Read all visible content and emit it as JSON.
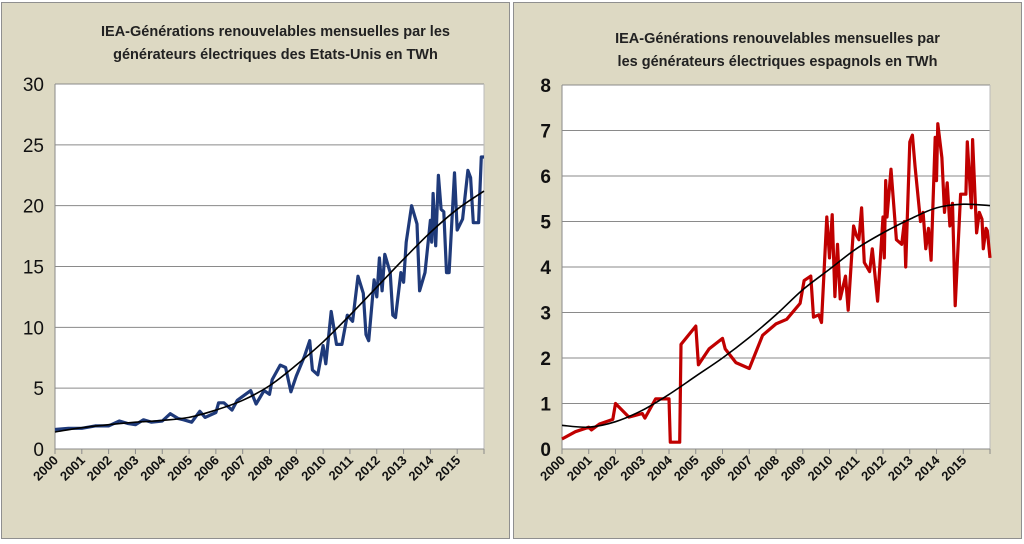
{
  "chart_data": [
    {
      "type": "line",
      "title_line1": "IEA-Générations renouvelables mensuelles par les",
      "title_line2": "générateurs  électriques des Etats-Unis  en TWh",
      "xlabel": "",
      "ylabel": "",
      "xlim": [
        2000,
        2016
      ],
      "ylim": [
        0,
        30
      ],
      "y_ticks": [
        "0",
        "5",
        "10",
        "15",
        "20",
        "25",
        "30"
      ],
      "x_ticks": [
        "2000",
        "2001",
        "2002",
        "2003",
        "2004",
        "2005",
        "2006",
        "2007",
        "2008",
        "2009",
        "2010",
        "2011",
        "2012",
        "2013",
        "2014",
        "2015"
      ],
      "grid": true,
      "series_color": "#1f3a7a",
      "trend_color": "#000000",
      "series": [
        [
          2000,
          1.6
        ],
        [
          2000.5,
          1.7
        ],
        [
          2001,
          1.7
        ],
        [
          2001.5,
          1.9
        ],
        [
          2002,
          1.9
        ],
        [
          2002.4,
          2.3
        ],
        [
          2002.7,
          2.1
        ],
        [
          2003,
          2.0
        ],
        [
          2003.3,
          2.4
        ],
        [
          2003.6,
          2.2
        ],
        [
          2004,
          2.3
        ],
        [
          2004.3,
          2.9
        ],
        [
          2004.6,
          2.5
        ],
        [
          2004.8,
          2.4
        ],
        [
          2005.1,
          2.2
        ],
        [
          2005.4,
          3.1
        ],
        [
          2005.6,
          2.6
        ],
        [
          2006,
          3.0
        ],
        [
          2006.1,
          3.8
        ],
        [
          2006.3,
          3.8
        ],
        [
          2006.6,
          3.2
        ],
        [
          2006.8,
          4.0
        ],
        [
          2007.3,
          4.8
        ],
        [
          2007.5,
          3.7
        ],
        [
          2007.8,
          4.8
        ],
        [
          2008,
          4.5
        ],
        [
          2008.1,
          5.7
        ],
        [
          2008.4,
          6.9
        ],
        [
          2008.6,
          6.7
        ],
        [
          2008.8,
          4.7
        ],
        [
          2009,
          6.0
        ],
        [
          2009.3,
          7.6
        ],
        [
          2009.5,
          8.9
        ],
        [
          2009.6,
          6.5
        ],
        [
          2009.8,
          6.1
        ],
        [
          2010,
          8.5
        ],
        [
          2010.1,
          7.0
        ],
        [
          2010.3,
          11.3
        ],
        [
          2010.5,
          8.6
        ],
        [
          2010.7,
          8.6
        ],
        [
          2010.9,
          11.0
        ],
        [
          2011.1,
          10.5
        ],
        [
          2011.3,
          14.2
        ],
        [
          2011.5,
          12.8
        ],
        [
          2011.6,
          9.4
        ],
        [
          2011.7,
          8.9
        ],
        [
          2011.9,
          13.9
        ],
        [
          2012,
          12.5
        ],
        [
          2012.1,
          15.7
        ],
        [
          2012.2,
          13.0
        ],
        [
          2012.3,
          16.0
        ],
        [
          2012.5,
          14.5
        ],
        [
          2012.6,
          11.0
        ],
        [
          2012.7,
          10.8
        ],
        [
          2012.9,
          14.5
        ],
        [
          2013,
          13.7
        ],
        [
          2013.1,
          17.0
        ],
        [
          2013.3,
          20.0
        ],
        [
          2013.5,
          18.5
        ],
        [
          2013.6,
          13.0
        ],
        [
          2013.8,
          14.5
        ],
        [
          2014,
          18.8
        ],
        [
          2014.05,
          17.0
        ],
        [
          2014.1,
          21.0
        ],
        [
          2014.2,
          16.7
        ],
        [
          2014.3,
          22.5
        ],
        [
          2014.4,
          19.7
        ],
        [
          2014.5,
          19.5
        ],
        [
          2014.6,
          14.5
        ],
        [
          2014.7,
          14.5
        ],
        [
          2014.9,
          22.7
        ],
        [
          2015,
          18.0
        ],
        [
          2015.2,
          18.9
        ],
        [
          2015.4,
          22.9
        ],
        [
          2015.5,
          22.3
        ],
        [
          2015.6,
          18.6
        ],
        [
          2015.8,
          18.6
        ],
        [
          2015.9,
          24.0
        ],
        [
          2016,
          24.0
        ]
      ],
      "trend": [
        [
          2000,
          1.4
        ],
        [
          2001,
          1.75
        ],
        [
          2002,
          2.0
        ],
        [
          2003,
          2.2
        ],
        [
          2004,
          2.35
        ],
        [
          2005,
          2.6
        ],
        [
          2006,
          3.2
        ],
        [
          2007,
          4.0
        ],
        [
          2008,
          5.2
        ],
        [
          2009,
          6.9
        ],
        [
          2010,
          8.8
        ],
        [
          2011,
          11.0
        ],
        [
          2012,
          13.3
        ],
        [
          2013,
          15.6
        ],
        [
          2014,
          17.8
        ],
        [
          2015,
          19.7
        ],
        [
          2016,
          21.2
        ]
      ]
    },
    {
      "type": "line",
      "title_line1": "IEA-Générations renouvelables mensuelles par",
      "title_line2": "les générateurs  électriques espagnols en TWh",
      "xlabel": "",
      "ylabel": "",
      "xlim": [
        2000,
        2016
      ],
      "ylim": [
        0,
        8
      ],
      "y_ticks": [
        "0",
        "1",
        "2",
        "3",
        "4",
        "5",
        "6",
        "7",
        "8"
      ],
      "x_ticks": [
        "2000",
        "2001",
        "2002",
        "2003",
        "2004",
        "2005",
        "2006",
        "2007",
        "2008",
        "2009",
        "2010",
        "2011",
        "2012",
        "2013",
        "2014",
        "2015"
      ],
      "grid": true,
      "series_color": "#c00000",
      "trend_color": "#000000",
      "series": [
        [
          2000,
          0.22
        ],
        [
          2000.5,
          0.38
        ],
        [
          2001,
          0.48
        ],
        [
          2001.1,
          0.42
        ],
        [
          2001.4,
          0.55
        ],
        [
          2001.9,
          0.65
        ],
        [
          2002,
          1.0
        ],
        [
          2002.5,
          0.7
        ],
        [
          2003,
          0.78
        ],
        [
          2003.1,
          0.68
        ],
        [
          2003.5,
          1.1
        ],
        [
          2004,
          1.1
        ],
        [
          2004.05,
          0.15
        ],
        [
          2004.4,
          0.15
        ],
        [
          2004.45,
          2.3
        ],
        [
          2005,
          2.7
        ],
        [
          2005.1,
          1.85
        ],
        [
          2005.5,
          2.2
        ],
        [
          2006,
          2.43
        ],
        [
          2006.1,
          2.2
        ],
        [
          2006.5,
          1.9
        ],
        [
          2007,
          1.77
        ],
        [
          2007.5,
          2.5
        ],
        [
          2008,
          2.75
        ],
        [
          2008.4,
          2.85
        ],
        [
          2008.9,
          3.2
        ],
        [
          2009.05,
          3.7
        ],
        [
          2009.3,
          3.8
        ],
        [
          2009.4,
          2.9
        ],
        [
          2009.6,
          2.95
        ],
        [
          2009.7,
          2.78
        ],
        [
          2009.9,
          5.1
        ],
        [
          2010,
          4.2
        ],
        [
          2010.1,
          5.15
        ],
        [
          2010.2,
          3.35
        ],
        [
          2010.3,
          4.5
        ],
        [
          2010.4,
          3.3
        ],
        [
          2010.6,
          3.8
        ],
        [
          2010.7,
          3.05
        ],
        [
          2010.9,
          4.9
        ],
        [
          2011,
          4.7
        ],
        [
          2011.1,
          4.6
        ],
        [
          2011.2,
          5.3
        ],
        [
          2011.3,
          4.1
        ],
        [
          2011.5,
          3.9
        ],
        [
          2011.6,
          4.4
        ],
        [
          2011.8,
          3.25
        ],
        [
          2012,
          5.1
        ],
        [
          2012.05,
          4.2
        ],
        [
          2012.1,
          5.9
        ],
        [
          2012.15,
          5.1
        ],
        [
          2012.3,
          6.15
        ],
        [
          2012.5,
          4.6
        ],
        [
          2012.7,
          4.5
        ],
        [
          2012.8,
          5.0
        ],
        [
          2012.85,
          4.0
        ],
        [
          2013,
          6.75
        ],
        [
          2013.1,
          6.9
        ],
        [
          2013.2,
          6.2
        ],
        [
          2013.4,
          5.0
        ],
        [
          2013.5,
          5.2
        ],
        [
          2013.6,
          4.4
        ],
        [
          2013.7,
          4.85
        ],
        [
          2013.8,
          4.15
        ],
        [
          2013.95,
          6.85
        ],
        [
          2014,
          5.9
        ],
        [
          2014.05,
          7.15
        ],
        [
          2014.2,
          6.4
        ],
        [
          2014.3,
          5.2
        ],
        [
          2014.4,
          5.85
        ],
        [
          2014.5,
          4.9
        ],
        [
          2014.6,
          5.4
        ],
        [
          2014.7,
          3.15
        ],
        [
          2014.9,
          5.6
        ],
        [
          2015.1,
          5.6
        ],
        [
          2015.15,
          6.75
        ],
        [
          2015.3,
          5.3
        ],
        [
          2015.35,
          6.8
        ],
        [
          2015.5,
          4.75
        ],
        [
          2015.6,
          5.2
        ],
        [
          2015.7,
          5.05
        ],
        [
          2015.75,
          4.4
        ],
        [
          2015.85,
          4.85
        ],
        [
          2015.9,
          4.8
        ],
        [
          2016,
          4.2
        ]
      ],
      "trend": [
        [
          2000,
          0.52
        ],
        [
          2001,
          0.48
        ],
        [
          2002,
          0.6
        ],
        [
          2003,
          0.85
        ],
        [
          2004,
          1.2
        ],
        [
          2005,
          1.6
        ],
        [
          2006,
          2.0
        ],
        [
          2007,
          2.45
        ],
        [
          2008,
          2.95
        ],
        [
          2009,
          3.5
        ],
        [
          2010,
          3.95
        ],
        [
          2011,
          4.4
        ],
        [
          2012,
          4.75
        ],
        [
          2013,
          5.05
        ],
        [
          2014,
          5.3
        ],
        [
          2015,
          5.38
        ],
        [
          2016,
          5.35
        ]
      ]
    }
  ]
}
